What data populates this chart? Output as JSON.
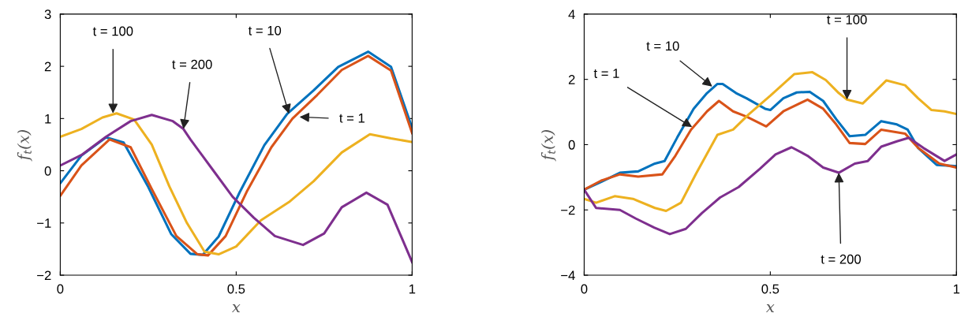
{
  "chart_data": [
    {
      "type": "line",
      "xlabel": "x",
      "ylabel": "f$_{t}$(x)",
      "xlim": [
        0,
        1
      ],
      "xticks": [
        0,
        0.5,
        1
      ],
      "ylim": [
        -2,
        3
      ],
      "yticks": [
        {
          "value": -2,
          "label": "−2"
        },
        {
          "value": -1,
          "label": "−1"
        },
        0,
        1,
        2,
        3
      ],
      "grid": false,
      "legend": false,
      "marker": "none",
      "line_style": "solid",
      "series": [
        {
          "color": "#0072bd",
          "x": [
            0,
            0.06,
            0.13,
            0.18,
            0.25,
            0.315,
            0.37,
            0.405,
            0.45,
            0.51,
            0.58,
            0.645,
            0.72,
            0.79,
            0.875,
            0.94,
            1.0
          ],
          "values": [
            -0.24,
            0.29,
            0.64,
            0.54,
            -0.31,
            -1.21,
            -1.59,
            -1.61,
            -1.26,
            -0.41,
            0.49,
            1.09,
            1.54,
            1.99,
            2.28,
            1.99,
            0.82
          ]
        },
        {
          "color": "#d95319",
          "x": [
            0,
            0.06,
            0.14,
            0.2,
            0.26,
            0.33,
            0.39,
            0.42,
            0.47,
            0.53,
            0.6,
            0.66,
            0.73,
            0.8,
            0.875,
            0.94,
            1.0
          ],
          "values": [
            -0.48,
            0.1,
            0.6,
            0.45,
            -0.35,
            -1.25,
            -1.6,
            -1.62,
            -1.25,
            -0.4,
            0.45,
            1.0,
            1.45,
            1.93,
            2.2,
            1.92,
            0.72
          ]
        },
        {
          "color": "#edb120",
          "x": [
            0,
            0.06,
            0.12,
            0.16,
            0.21,
            0.26,
            0.31,
            0.36,
            0.41,
            0.45,
            0.5,
            0.57,
            0.65,
            0.72,
            0.8,
            0.88,
            0.94,
            1.0
          ],
          "values": [
            0.65,
            0.8,
            1.02,
            1.1,
            0.98,
            0.5,
            -0.3,
            -1.0,
            -1.55,
            -1.6,
            -1.45,
            -0.95,
            -0.6,
            -0.2,
            0.35,
            0.7,
            0.62,
            0.55
          ]
        },
        {
          "color": "#7e2f8e",
          "x": [
            0,
            0.06,
            0.13,
            0.2,
            0.26,
            0.32,
            0.35,
            0.37,
            0.43,
            0.49,
            0.55,
            0.61,
            0.69,
            0.75,
            0.8,
            0.87,
            0.93,
            1.0
          ],
          "values": [
            0.1,
            0.3,
            0.65,
            0.95,
            1.07,
            0.95,
            0.8,
            0.6,
            0.05,
            -0.5,
            -0.9,
            -1.25,
            -1.42,
            -1.2,
            -0.7,
            -0.42,
            -0.65,
            -1.75
          ]
        }
      ],
      "annotations": [
        {
          "text": "t = 100",
          "x": 0.15,
          "y": 1.1
        },
        {
          "text": "t = 200",
          "x": 0.35,
          "y": 0.8
        },
        {
          "text": "t = 10",
          "x": 0.65,
          "y": 1.09
        },
        {
          "text": "t = 1",
          "x": 0.68,
          "y": 1.03
        }
      ]
    },
    {
      "type": "line",
      "xlabel": "x",
      "ylabel": "f$_{t}$(x)",
      "xlim": [
        0,
        1
      ],
      "xticks": [
        0,
        0.5,
        1
      ],
      "ylim": [
        -4,
        4
      ],
      "yticks": [
        {
          "value": -4,
          "label": "−4"
        },
        {
          "value": -2,
          "label": "−2"
        },
        0,
        2,
        4
      ],
      "grid": false,
      "legend": false,
      "marker": "none",
      "line_style": "solid",
      "series": [
        {
          "color": "#0072bd",
          "x": [
            0,
            0.046,
            0.096,
            0.145,
            0.19,
            0.216,
            0.25,
            0.294,
            0.33,
            0.358,
            0.372,
            0.408,
            0.436,
            0.486,
            0.5,
            0.535,
            0.571,
            0.606,
            0.642,
            0.677,
            0.713,
            0.755,
            0.798,
            0.84,
            0.869,
            0.897,
            0.947,
            1.0
          ],
          "values": [
            -1.38,
            -1.14,
            -0.86,
            -0.82,
            -0.58,
            -0.5,
            0.22,
            1.1,
            1.58,
            1.86,
            1.86,
            1.58,
            1.42,
            1.1,
            1.06,
            1.42,
            1.6,
            1.62,
            1.34,
            0.78,
            0.26,
            0.3,
            0.72,
            0.62,
            0.46,
            -0.1,
            -0.62,
            -0.66
          ]
        },
        {
          "color": "#d95319",
          "x": [
            0,
            0.046,
            0.096,
            0.145,
            0.21,
            0.245,
            0.287,
            0.33,
            0.362,
            0.4,
            0.436,
            0.489,
            0.535,
            0.6,
            0.642,
            0.677,
            0.713,
            0.755,
            0.798,
            0.862,
            0.897,
            0.954,
            1.0
          ],
          "values": [
            -1.38,
            -1.1,
            -0.91,
            -0.98,
            -0.91,
            -0.34,
            0.46,
            1.02,
            1.34,
            1.02,
            0.86,
            0.56,
            1.02,
            1.38,
            1.1,
            0.62,
            0.05,
            0.02,
            0.46,
            0.34,
            -0.1,
            -0.58,
            -0.7
          ]
        },
        {
          "color": "#edb120",
          "x": [
            0,
            0.032,
            0.082,
            0.131,
            0.19,
            0.22,
            0.26,
            0.3,
            0.358,
            0.4,
            0.443,
            0.5,
            0.564,
            0.613,
            0.649,
            0.684,
            0.706,
            0.748,
            0.777,
            0.812,
            0.862,
            0.897,
            0.933,
            0.968,
            1.0
          ],
          "values": [
            -1.66,
            -1.78,
            -1.58,
            -1.66,
            -1.94,
            -2.03,
            -1.78,
            -0.9,
            0.3,
            0.46,
            0.94,
            1.5,
            2.16,
            2.22,
            1.98,
            1.58,
            1.38,
            1.26,
            1.58,
            1.97,
            1.82,
            1.42,
            1.06,
            1.02,
            0.94
          ]
        },
        {
          "color": "#7e2f8e",
          "x": [
            0,
            0.032,
            0.096,
            0.138,
            0.188,
            0.23,
            0.273,
            0.316,
            0.365,
            0.415,
            0.472,
            0.514,
            0.557,
            0.6,
            0.642,
            0.684,
            0.727,
            0.762,
            0.798,
            0.84,
            0.872,
            0.911,
            0.968,
            1.0
          ],
          "values": [
            -1.38,
            -1.94,
            -2.0,
            -2.26,
            -2.54,
            -2.74,
            -2.58,
            -2.1,
            -1.62,
            -1.3,
            -0.74,
            -0.3,
            -0.08,
            -0.34,
            -0.7,
            -0.86,
            -0.58,
            -0.5,
            -0.06,
            0.1,
            0.21,
            -0.1,
            -0.5,
            -0.3
          ]
        }
      ],
      "annotations": [
        {
          "text": "t = 10",
          "x": 0.344,
          "y": 1.78
        },
        {
          "text": "t = 1",
          "x": 0.29,
          "y": 0.54
        },
        {
          "text": "t = 100",
          "x": 0.706,
          "y": 1.38
        },
        {
          "text": "t = 200",
          "x": 0.684,
          "y": -0.86
        }
      ]
    }
  ]
}
